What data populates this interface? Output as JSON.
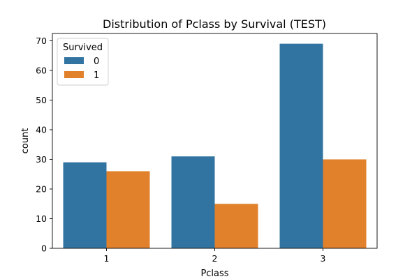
{
  "chart_data": {
    "type": "bar",
    "title": "Distribution of Pclass by Survival (TEST)",
    "xlabel": "Pclass",
    "ylabel": "count",
    "categories": [
      "1",
      "2",
      "3"
    ],
    "series": [
      {
        "name": "0",
        "values": [
          29,
          31,
          69
        ],
        "color": "#3274a1"
      },
      {
        "name": "1",
        "values": [
          26,
          15,
          30
        ],
        "color": "#e1812c"
      }
    ],
    "ylim": [
      0,
      72.45
    ],
    "yticks": [
      0,
      10,
      20,
      30,
      40,
      50,
      60,
      70
    ],
    "legend": {
      "title": "Survived",
      "position": "top-left"
    },
    "grid": false
  }
}
